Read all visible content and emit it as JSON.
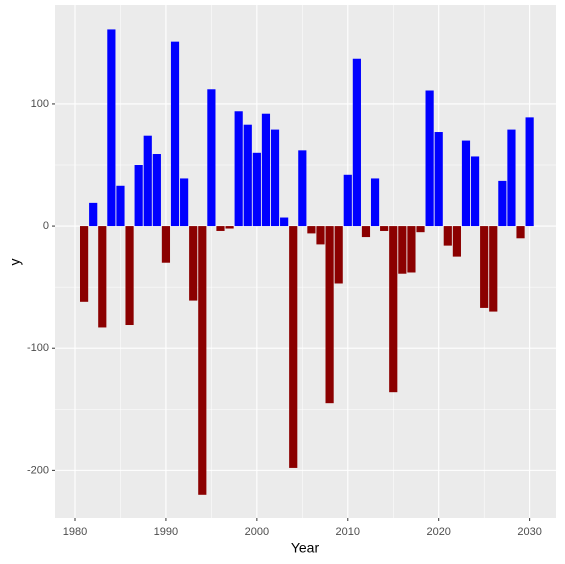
{
  "chart_data": {
    "type": "bar",
    "x_label": "Year",
    "y_label": "y",
    "x": [
      1981,
      1982,
      1983,
      1984,
      1985,
      1986,
      1987,
      1988,
      1989,
      1990,
      1991,
      1992,
      1993,
      1994,
      1995,
      1996,
      1997,
      1998,
      1999,
      2000,
      2001,
      2002,
      2003,
      2004,
      2005,
      2006,
      2007,
      2008,
      2009,
      2010,
      2011,
      2012,
      2013,
      2014,
      2015,
      2016,
      2017,
      2018,
      2019,
      2020,
      2021,
      2022,
      2023,
      2024,
      2025,
      2026,
      2027,
      2028,
      2029,
      2030
    ],
    "values": [
      -62,
      19,
      -83,
      161,
      33,
      -81,
      50,
      74,
      59,
      -30,
      151,
      39,
      -61,
      -220,
      112,
      -4,
      -2,
      94,
      83,
      60,
      92,
      79,
      7,
      -198,
      62,
      -6,
      -15,
      -145,
      -47,
      42,
      137,
      -9,
      39,
      -4,
      -136,
      -39,
      -38,
      -5,
      111,
      77,
      -16,
      -25,
      70,
      57,
      -67,
      -70,
      37,
      79,
      -10,
      89
    ],
    "colors": {
      "positive": "#0000ff",
      "negative": "#8b0000"
    },
    "xlim": [
      1977.8,
      2032.9
    ],
    "xticks": [
      1980,
      1990,
      2000,
      2010,
      2020,
      2030
    ],
    "ylim": [
      -239,
      181
    ],
    "yticks": [
      -200,
      -100,
      0,
      100
    ],
    "grid": true
  }
}
